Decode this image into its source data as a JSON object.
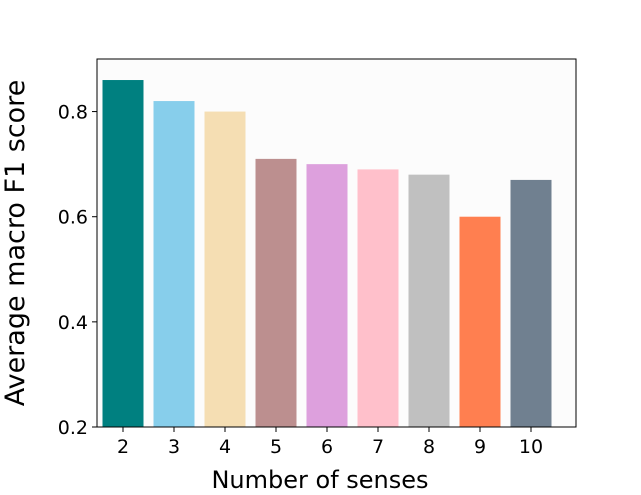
{
  "chart_data": {
    "type": "bar",
    "categories": [
      "2",
      "3",
      "4",
      "5",
      "6",
      "7",
      "8",
      "9",
      "10"
    ],
    "values": [
      0.86,
      0.82,
      0.8,
      0.71,
      0.7,
      0.69,
      0.68,
      0.6,
      0.67
    ],
    "colors": [
      "#008080",
      "#87ceeb",
      "#f5deb3",
      "#bc8f8f",
      "#dda0dd",
      "#ffc0cb",
      "#c0c0c0",
      "#ff7f50",
      "#708090"
    ],
    "xlabel": "Number of senses",
    "ylabel": "Average macro F1 score",
    "ylim": [
      0.2,
      0.9
    ],
    "yticks": [
      0.2,
      0.4,
      0.6,
      0.8
    ],
    "ytick_labels": [
      "0.2",
      "0.4",
      "0.6",
      "0.8"
    ],
    "grid": false,
    "plot_background": "#fcfcfc"
  }
}
